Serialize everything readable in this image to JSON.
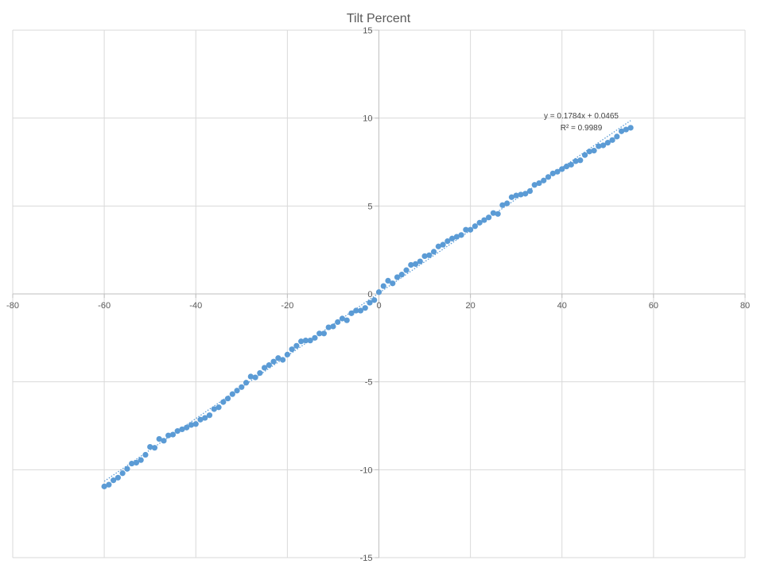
{
  "chart_data": {
    "type": "scatter",
    "title": "Tilt Percent",
    "xlabel": "",
    "ylabel": "",
    "xlim": [
      -80,
      80
    ],
    "ylim": [
      -15,
      15
    ],
    "x_ticks": [
      -80,
      -60,
      -40,
      -20,
      0,
      20,
      40,
      60,
      80
    ],
    "y_ticks": [
      -15,
      -10,
      -5,
      0,
      5,
      10,
      15
    ],
    "x_tick_labels": [
      "-80",
      "-60",
      "-40",
      "-20",
      "0",
      "20",
      "40",
      "60",
      "80"
    ],
    "y_tick_labels": [
      "-15",
      "-10",
      "-5",
      "0",
      "5",
      "10",
      "15"
    ],
    "grid": true,
    "legend": "none",
    "marker_color": "#5B9BD5",
    "trendline": {
      "type": "linear",
      "slope": 0.1784,
      "intercept": 0.0465,
      "color": "#5B9BD5",
      "style": "dotted",
      "equation_label": "y = 0.1784x + 0.0465",
      "r2_label": "R² = 0.9989"
    },
    "series": [
      {
        "x": [
          -60,
          -59,
          -58,
          -57,
          -56,
          -55,
          -54,
          -53,
          -52,
          -51,
          -50,
          -49,
          -48,
          -47,
          -46,
          -45,
          -44,
          -43,
          -42,
          -41,
          -40,
          -39,
          -38,
          -37,
          -36,
          -35,
          -34,
          -33,
          -32,
          -31,
          -30,
          -29,
          -28,
          -27,
          -26,
          -25,
          -24,
          -23,
          -22,
          -21,
          -20,
          -19,
          -18,
          -17,
          -16,
          -15,
          -14,
          -13,
          -12,
          -11,
          -10,
          -9,
          -8,
          -7,
          -6,
          -5,
          -4,
          -3,
          -2,
          -1,
          0,
          1,
          2,
          3,
          4,
          5,
          6,
          7,
          8,
          9,
          10,
          11,
          12,
          13,
          14,
          15,
          16,
          17,
          18,
          19,
          20,
          21,
          22,
          23,
          24,
          25,
          26,
          27,
          28,
          29,
          30,
          31,
          32,
          33,
          34,
          35,
          36,
          37,
          38,
          39,
          40,
          41,
          42,
          43,
          44,
          45,
          46,
          47,
          48,
          49,
          50,
          51,
          52,
          53,
          54,
          55
        ],
        "y": [
          -10.95,
          -10.85,
          -10.6,
          -10.45,
          -10.2,
          -9.95,
          -9.65,
          -9.6,
          -9.45,
          -9.15,
          -8.7,
          -8.75,
          -8.25,
          -8.35,
          -8.05,
          -8.0,
          -7.8,
          -7.7,
          -7.6,
          -7.45,
          -7.4,
          -7.15,
          -7.05,
          -6.9,
          -6.55,
          -6.45,
          -6.15,
          -5.95,
          -5.7,
          -5.5,
          -5.3,
          -5.05,
          -4.7,
          -4.75,
          -4.5,
          -4.2,
          -4.05,
          -3.85,
          -3.65,
          -3.75,
          -3.45,
          -3.15,
          -2.95,
          -2.7,
          -2.65,
          -2.65,
          -2.5,
          -2.25,
          -2.25,
          -1.9,
          -1.85,
          -1.6,
          -1.4,
          -1.5,
          -1.1,
          -0.95,
          -0.95,
          -0.8,
          -0.5,
          -0.35,
          0.1,
          0.45,
          0.75,
          0.6,
          0.95,
          1.1,
          1.35,
          1.65,
          1.7,
          1.85,
          2.15,
          2.2,
          2.4,
          2.7,
          2.8,
          3.0,
          3.15,
          3.25,
          3.35,
          3.65,
          3.65,
          3.85,
          4.05,
          4.2,
          4.35,
          4.6,
          4.55,
          5.05,
          5.15,
          5.5,
          5.6,
          5.65,
          5.7,
          5.85,
          6.2,
          6.3,
          6.45,
          6.65,
          6.85,
          6.95,
          7.1,
          7.25,
          7.35,
          7.55,
          7.6,
          7.9,
          8.1,
          8.15,
          8.4,
          8.45,
          8.6,
          8.75,
          8.95,
          9.25,
          9.35,
          9.45
        ]
      }
    ]
  }
}
